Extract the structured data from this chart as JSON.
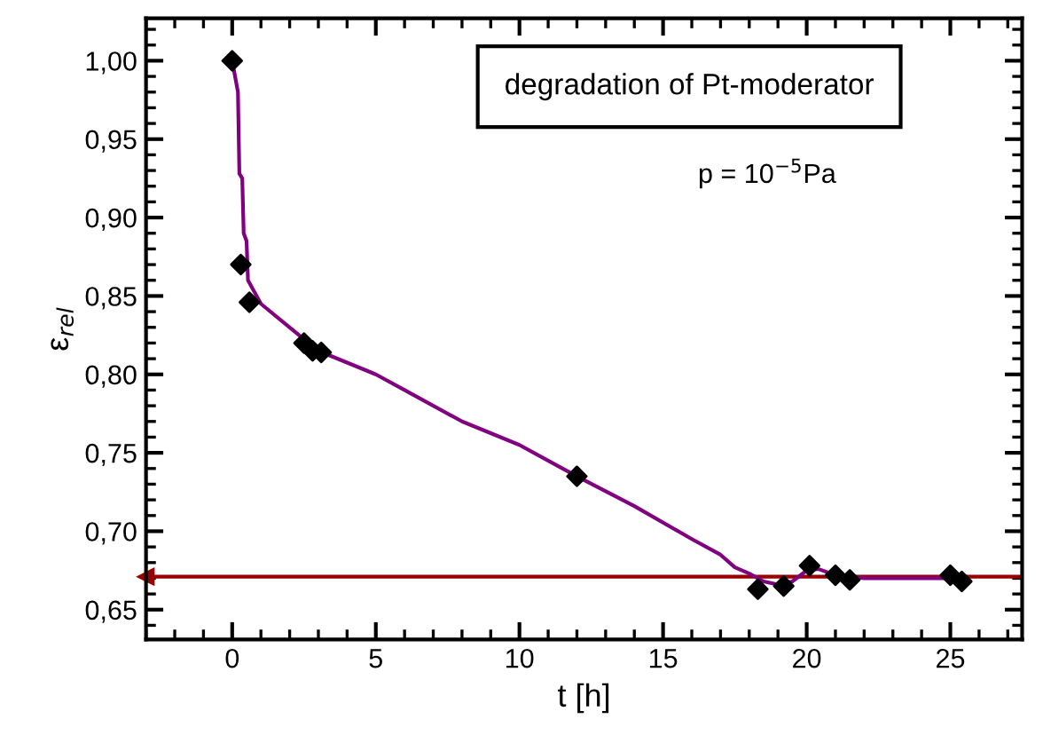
{
  "chart_data": {
    "type": "scatter",
    "xlabel": "t [h]",
    "ylabel": "ε$_{rel}$",
    "annotations": [
      "degradation of Pt-moderator",
      "p = 10$^{−5}$Pa"
    ],
    "xlim": [
      -3,
      27.5
    ],
    "ylim": [
      0.631,
      1.027
    ],
    "xticks": [
      0,
      5,
      10,
      15,
      20,
      25
    ],
    "yticks": [
      {
        "value": 0.65,
        "label": "0,65"
      },
      {
        "value": 0.7,
        "label": "0,70"
      },
      {
        "value": 0.75,
        "label": "0,75"
      },
      {
        "value": 0.8,
        "label": "0,80"
      },
      {
        "value": 0.85,
        "label": "0,85"
      },
      {
        "value": 0.9,
        "label": "0,90"
      },
      {
        "value": 0.95,
        "label": "0,95"
      },
      {
        "value": 1.0,
        "label": "1,00"
      }
    ],
    "grid": false,
    "ref_lines": [
      {
        "axis": "y",
        "value": 0.671,
        "color": "#990000",
        "line_style": "solid"
      }
    ],
    "series": [
      {
        "type": "line",
        "color": "#800080",
        "marker": "none",
        "line_style": "solid",
        "x": [
          0,
          0.2,
          0.25,
          0.35,
          0.4,
          0.5,
          0.55,
          1,
          2,
          3,
          5,
          6,
          8,
          10,
          12,
          14,
          16,
          17,
          17.5,
          18,
          18.5,
          19,
          19.5,
          20,
          20.4,
          21,
          22,
          25.5
        ],
        "values": [
          1.0,
          0.98,
          0.928,
          0.925,
          0.89,
          0.885,
          0.86,
          0.845,
          0.83,
          0.815,
          0.8,
          0.79,
          0.77,
          0.755,
          0.735,
          0.716,
          0.695,
          0.685,
          0.677,
          0.673,
          0.668,
          0.666,
          0.668,
          0.675,
          0.676,
          0.672,
          0.67,
          0.67
        ]
      },
      {
        "color": "#000000",
        "marker": "diamond",
        "x": [
          0,
          0.3,
          0.6,
          2.5,
          2.8,
          3.1,
          12,
          18.3,
          19.2,
          20.1,
          21,
          21.5,
          25,
          25.4
        ],
        "values": [
          1.0,
          0.87,
          0.846,
          0.82,
          0.815,
          0.814,
          0.735,
          0.663,
          0.665,
          0.678,
          0.672,
          0.669,
          0.672,
          0.668
        ]
      }
    ]
  }
}
